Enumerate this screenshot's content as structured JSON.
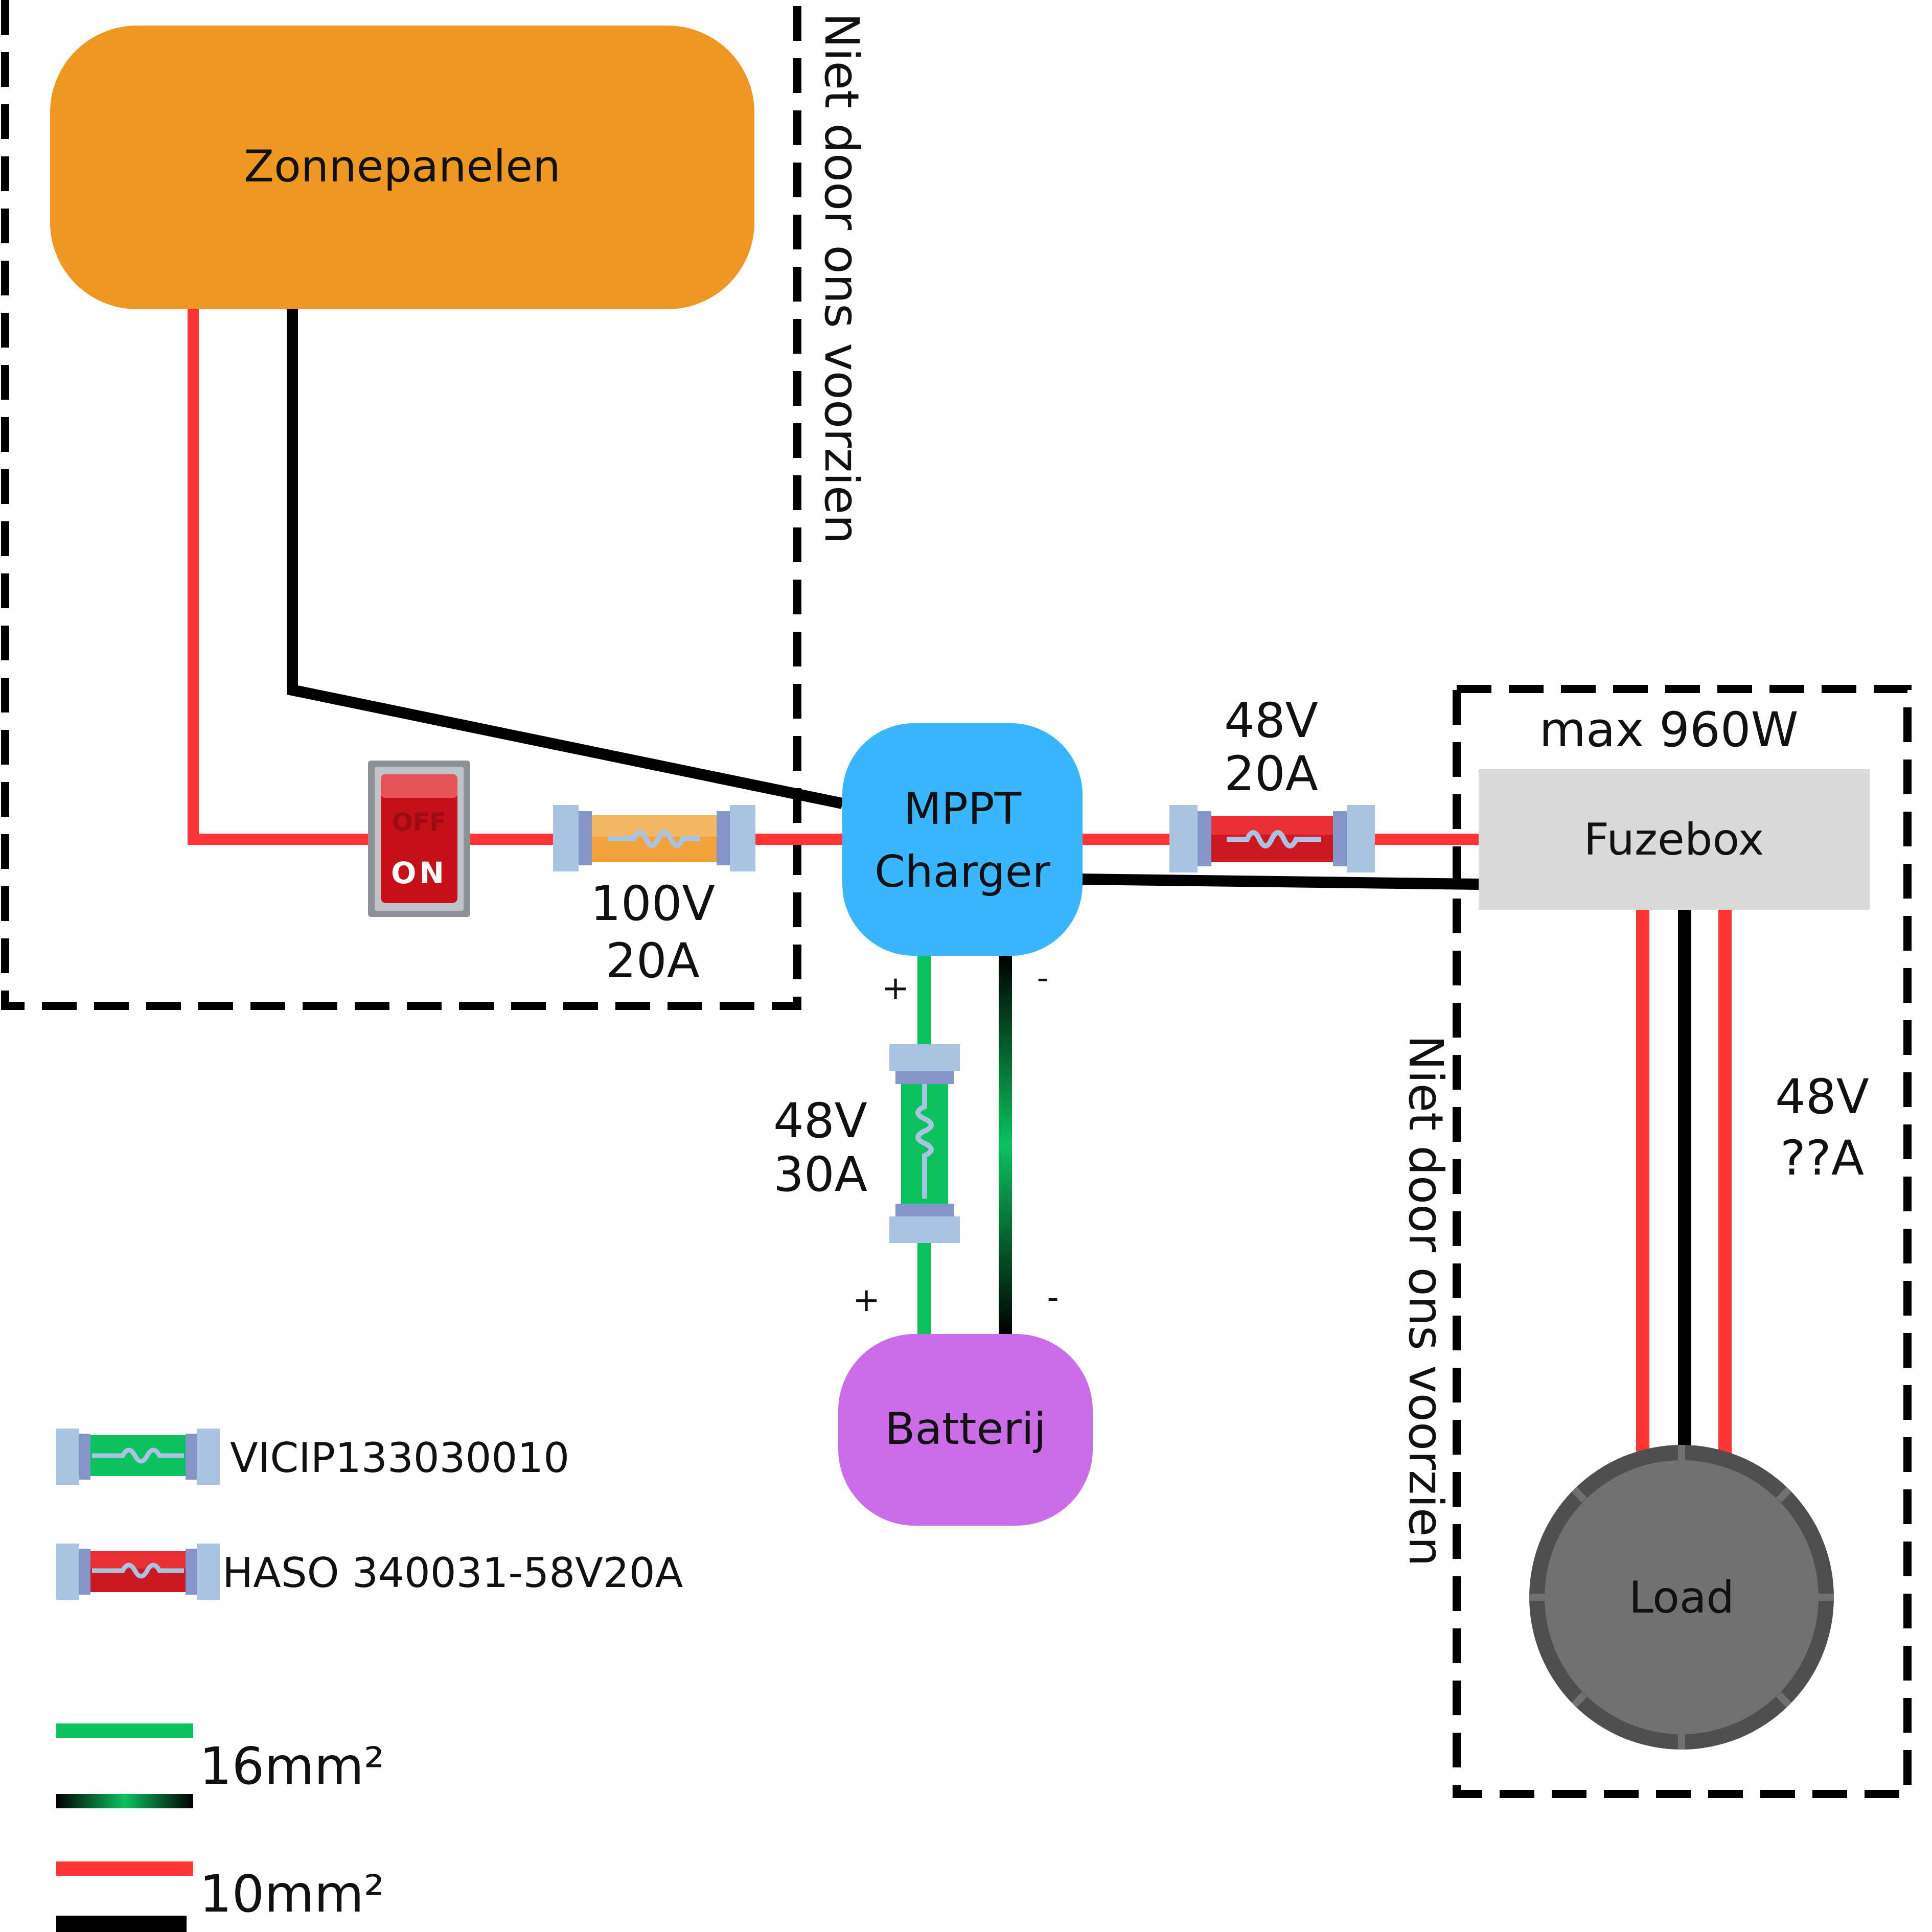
{
  "colors": {
    "positive_wire": "#ff3535",
    "negative_wire": "#000000",
    "battery_positive_wire": "#0cc25e",
    "solar_panels": "#ee9723",
    "mppt": "#39b6fe",
    "battery": "#cb6de6",
    "fuzebox": "#d9d9d9",
    "load": "#717171",
    "load_rim": "#4f4f4f",
    "fuse_cap": "#a9c4e2",
    "fuse_cap_inner": "#8495c7",
    "fuse_orange": "#f2a33b",
    "fuse_green": "#0cc25e",
    "fuse_red": "#cd1a22"
  },
  "zones": {
    "left_note": "Niet door ons voorzien",
    "right_note": "Niet door ons voorzien"
  },
  "components": {
    "solar": "Zonnepanelen",
    "mppt_line1": "MPPT",
    "mppt_line2": "Charger",
    "battery": "Batterij",
    "fuzebox": "Fuzebox",
    "load": "Load",
    "max_power": "max 960W"
  },
  "switch": {
    "off_label": "OFF",
    "on_label": "ON"
  },
  "ratings": {
    "solar_fuse_voltage": "100V",
    "solar_fuse_current": "20A",
    "fuzebox_fuse_voltage": "48V",
    "fuzebox_fuse_current": "20A",
    "battery_fuse_voltage": "48V",
    "battery_fuse_current": "30A",
    "load_voltage": "48V",
    "load_current": "??A"
  },
  "polarity": {
    "mppt_plus": "+",
    "mppt_minus": "-",
    "battery_plus": "+",
    "battery_minus": "-"
  },
  "legend": {
    "fuse_green_label": "VICIP133030010",
    "fuse_red_label": "HASO 340031-58V20A",
    "wire_16_label": "16mm²",
    "wire_10_label": "10mm²"
  }
}
